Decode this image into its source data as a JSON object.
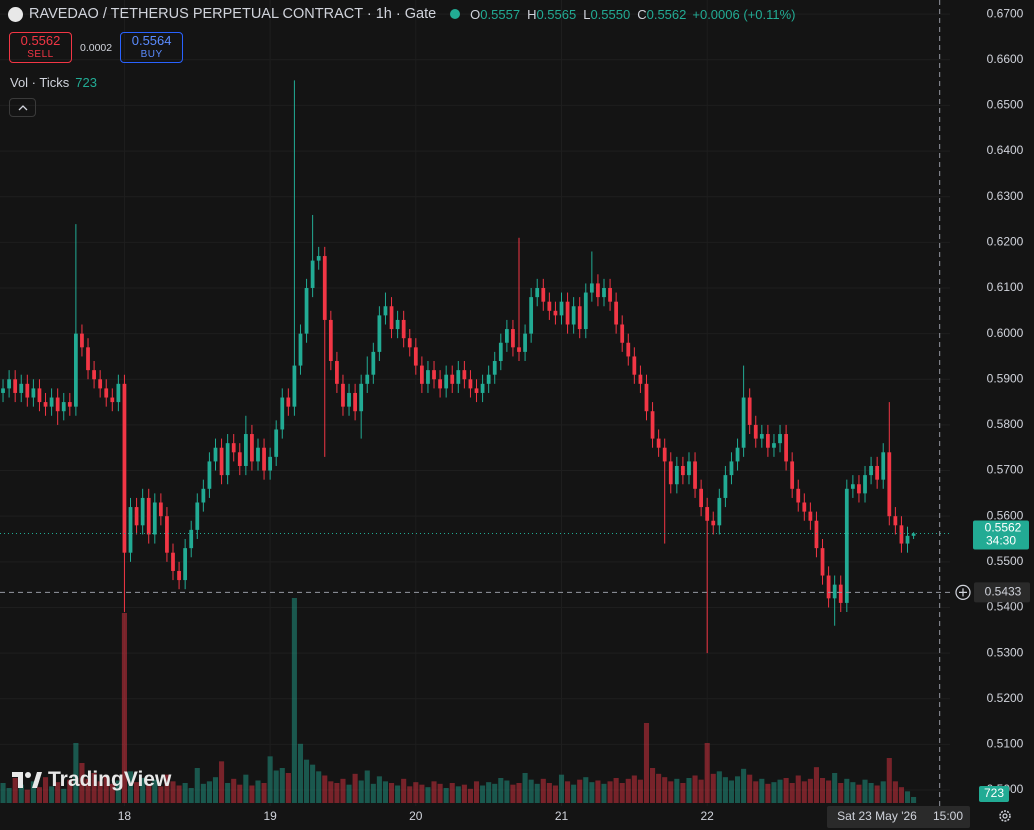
{
  "header": {
    "symbol": "RAVEDAO / TETHERUS PERPETUAL CONTRACT · 1h · Gate",
    "ohlc": [
      {
        "key": "O",
        "value": "0.5557"
      },
      {
        "key": "H",
        "value": "0.5565"
      },
      {
        "key": "L",
        "value": "0.5550"
      },
      {
        "key": "C",
        "value": "0.5562"
      }
    ],
    "change": "+0.0006 (+0.11%)"
  },
  "trade": {
    "sell_price": "0.5562",
    "sell_label": "SELL",
    "spread": "0.0002",
    "buy_price": "0.5564",
    "buy_label": "BUY"
  },
  "volume_legend": {
    "label": "Vol · Ticks"
  },
  "watermark": "TradingView",
  "chart_data": {
    "type": "candlestick",
    "open": [
      0.587,
      0.588,
      0.59,
      0.587,
      0.589,
      0.586,
      0.588,
      0.585,
      0.584,
      0.586,
      0.583,
      0.585,
      0.584,
      0.6,
      0.597,
      0.592,
      0.59,
      0.588,
      0.586,
      0.585,
      0.589,
      0.552,
      0.562,
      0.558,
      0.564,
      0.556,
      0.563,
      0.56,
      0.552,
      0.548,
      0.546,
      0.553,
      0.557,
      0.563,
      0.566,
      0.572,
      0.575,
      0.569,
      0.576,
      0.574,
      0.571,
      0.578,
      0.572,
      0.575,
      0.57,
      0.573,
      0.579,
      0.586,
      0.584,
      0.593,
      0.6,
      0.61,
      0.616,
      0.617,
      0.603,
      0.594,
      0.589,
      0.584,
      0.587,
      0.583,
      0.589,
      0.591,
      0.596,
      0.604,
      0.606,
      0.601,
      0.603,
      0.599,
      0.597,
      0.593,
      0.589,
      0.592,
      0.59,
      0.588,
      0.591,
      0.589,
      0.592,
      0.59,
      0.588,
      0.587,
      0.589,
      0.591,
      0.594,
      0.598,
      0.601,
      0.597,
      0.596,
      0.6,
      0.608,
      0.61,
      0.607,
      0.605,
      0.604,
      0.607,
      0.602,
      0.606,
      0.601,
      0.609,
      0.611,
      0.608,
      0.61,
      0.607,
      0.602,
      0.598,
      0.595,
      0.591,
      0.589,
      0.583,
      0.577,
      0.575,
      0.572,
      0.567,
      0.571,
      0.569,
      0.572,
      0.566,
      0.562,
      0.559,
      0.558,
      0.564,
      0.569,
      0.572,
      0.575,
      0.586,
      0.58,
      0.577,
      0.578,
      0.575,
      0.576,
      0.578,
      0.572,
      0.566,
      0.563,
      0.561,
      0.559,
      0.553,
      0.547,
      0.542,
      0.545,
      0.541,
      0.566,
      0.567,
      0.565,
      0.569,
      0.571,
      0.568,
      0.574,
      0.56,
      0.558,
      0.554,
      0.5557
    ],
    "high": [
      0.59,
      0.592,
      0.592,
      0.591,
      0.591,
      0.59,
      0.59,
      0.587,
      0.588,
      0.588,
      0.587,
      0.587,
      0.624,
      0.602,
      0.599,
      0.594,
      0.592,
      0.59,
      0.588,
      0.591,
      0.591,
      0.564,
      0.564,
      0.566,
      0.566,
      0.565,
      0.565,
      0.562,
      0.554,
      0.55,
      0.555,
      0.559,
      0.565,
      0.568,
      0.574,
      0.577,
      0.577,
      0.578,
      0.578,
      0.576,
      0.582,
      0.58,
      0.577,
      0.577,
      0.575,
      0.581,
      0.588,
      0.588,
      0.6555,
      0.602,
      0.612,
      0.626,
      0.619,
      0.619,
      0.605,
      0.596,
      0.591,
      0.589,
      0.589,
      0.591,
      0.595,
      0.598,
      0.606,
      0.609,
      0.608,
      0.605,
      0.605,
      0.601,
      0.599,
      0.595,
      0.594,
      0.594,
      0.592,
      0.593,
      0.593,
      0.594,
      0.594,
      0.592,
      0.59,
      0.591,
      0.593,
      0.596,
      0.6,
      0.603,
      0.603,
      0.621,
      0.602,
      0.61,
      0.612,
      0.612,
      0.609,
      0.607,
      0.609,
      0.609,
      0.608,
      0.608,
      0.611,
      0.618,
      0.613,
      0.612,
      0.612,
      0.609,
      0.604,
      0.6,
      0.597,
      0.593,
      0.591,
      0.585,
      0.579,
      0.577,
      0.574,
      0.573,
      0.573,
      0.574,
      0.574,
      0.568,
      0.564,
      0.561,
      0.566,
      0.571,
      0.574,
      0.577,
      0.593,
      0.588,
      0.582,
      0.58,
      0.58,
      0.578,
      0.58,
      0.58,
      0.574,
      0.568,
      0.565,
      0.563,
      0.561,
      0.555,
      0.549,
      0.547,
      0.547,
      0.568,
      0.569,
      0.569,
      0.571,
      0.573,
      0.573,
      0.576,
      0.585,
      0.562,
      0.56,
      0.5577,
      0.5565
    ],
    "low": [
      0.585,
      0.586,
      0.585,
      0.585,
      0.584,
      0.584,
      0.583,
      0.582,
      0.582,
      0.58,
      0.581,
      0.582,
      0.582,
      0.595,
      0.59,
      0.588,
      0.586,
      0.584,
      0.583,
      0.583,
      0.539,
      0.55,
      0.556,
      0.556,
      0.554,
      0.554,
      0.558,
      0.55,
      0.546,
      0.544,
      0.544,
      0.551,
      0.555,
      0.561,
      0.564,
      0.57,
      0.567,
      0.567,
      0.572,
      0.569,
      0.569,
      0.57,
      0.57,
      0.568,
      0.568,
      0.571,
      0.577,
      0.582,
      0.582,
      0.591,
      0.598,
      0.608,
      0.614,
      0.573,
      0.592,
      0.587,
      0.582,
      0.582,
      0.581,
      0.577,
      0.587,
      0.589,
      0.594,
      0.602,
      0.599,
      0.599,
      0.597,
      0.595,
      0.591,
      0.587,
      0.587,
      0.588,
      0.586,
      0.586,
      0.587,
      0.587,
      0.588,
      0.586,
      0.585,
      0.585,
      0.587,
      0.589,
      0.592,
      0.596,
      0.595,
      0.594,
      0.594,
      0.598,
      0.606,
      0.605,
      0.603,
      0.602,
      0.602,
      0.6,
      0.6,
      0.599,
      0.599,
      0.607,
      0.606,
      0.606,
      0.605,
      0.6,
      0.596,
      0.593,
      0.589,
      0.587,
      0.581,
      0.575,
      0.573,
      0.554,
      0.565,
      0.565,
      0.567,
      0.567,
      0.564,
      0.56,
      0.53,
      0.556,
      0.556,
      0.562,
      0.567,
      0.57,
      0.573,
      0.578,
      0.575,
      0.575,
      0.573,
      0.573,
      0.574,
      0.57,
      0.564,
      0.561,
      0.559,
      0.557,
      0.551,
      0.545,
      0.54,
      0.536,
      0.539,
      0.539,
      0.564,
      0.563,
      0.563,
      0.567,
      0.566,
      0.566,
      0.558,
      0.556,
      0.552,
      0.552,
      0.555
    ],
    "close": [
      0.588,
      0.59,
      0.587,
      0.589,
      0.586,
      0.588,
      0.585,
      0.584,
      0.586,
      0.583,
      0.585,
      0.584,
      0.6,
      0.597,
      0.592,
      0.59,
      0.588,
      0.586,
      0.585,
      0.589,
      0.552,
      0.562,
      0.558,
      0.564,
      0.556,
      0.563,
      0.56,
      0.552,
      0.548,
      0.546,
      0.553,
      0.557,
      0.563,
      0.566,
      0.572,
      0.575,
      0.569,
      0.576,
      0.574,
      0.571,
      0.578,
      0.572,
      0.575,
      0.57,
      0.573,
      0.579,
      0.586,
      0.584,
      0.593,
      0.6,
      0.61,
      0.616,
      0.617,
      0.603,
      0.594,
      0.589,
      0.584,
      0.587,
      0.583,
      0.589,
      0.591,
      0.596,
      0.604,
      0.606,
      0.601,
      0.603,
      0.599,
      0.597,
      0.593,
      0.589,
      0.592,
      0.59,
      0.588,
      0.591,
      0.589,
      0.592,
      0.59,
      0.588,
      0.587,
      0.589,
      0.591,
      0.594,
      0.598,
      0.601,
      0.597,
      0.596,
      0.6,
      0.608,
      0.61,
      0.607,
      0.605,
      0.604,
      0.607,
      0.602,
      0.606,
      0.601,
      0.609,
      0.611,
      0.608,
      0.61,
      0.607,
      0.602,
      0.598,
      0.595,
      0.591,
      0.589,
      0.583,
      0.577,
      0.575,
      0.572,
      0.567,
      0.571,
      0.569,
      0.572,
      0.566,
      0.562,
      0.559,
      0.558,
      0.564,
      0.569,
      0.572,
      0.575,
      0.586,
      0.58,
      0.577,
      0.578,
      0.575,
      0.576,
      0.578,
      0.572,
      0.566,
      0.563,
      0.561,
      0.559,
      0.553,
      0.547,
      0.542,
      0.545,
      0.541,
      0.566,
      0.567,
      0.565,
      0.569,
      0.571,
      0.568,
      0.574,
      0.56,
      0.558,
      0.554,
      0.5557,
      0.5562
    ],
    "volume": [
      2400,
      1800,
      3000,
      2200,
      1600,
      2600,
      1900,
      3100,
      2000,
      2500,
      1700,
      2800,
      7200,
      4800,
      2900,
      3600,
      2600,
      3300,
      2300,
      2700,
      22800,
      3800,
      2500,
      3000,
      2200,
      2800,
      2000,
      3400,
      2600,
      2100,
      2400,
      1800,
      4200,
      2300,
      2600,
      3100,
      5000,
      2400,
      2900,
      2200,
      3400,
      2100,
      2700,
      2400,
      5600,
      3900,
      4200,
      3600,
      24600,
      7100,
      5200,
      4600,
      3800,
      3300,
      2600,
      2400,
      2900,
      2200,
      3500,
      2700,
      3900,
      2300,
      3200,
      2600,
      2400,
      2100,
      2900,
      2000,
      2500,
      2200,
      1900,
      2600,
      2300,
      1800,
      2400,
      2000,
      2200,
      1700,
      2600,
      2100,
      2500,
      2300,
      3000,
      2700,
      2200,
      2400,
      3600,
      2800,
      2300,
      2900,
      2400,
      2100,
      3400,
      2600,
      2200,
      2800,
      3100,
      2500,
      2700,
      2300,
      2600,
      3000,
      2400,
      2900,
      3300,
      2800,
      9600,
      4200,
      3500,
      3100,
      2600,
      2900,
      2400,
      3000,
      3300,
      2800,
      7200,
      3500,
      3800,
      3100,
      2700,
      3200,
      4100,
      3400,
      2600,
      2900,
      2300,
      2500,
      2800,
      3000,
      2400,
      3300,
      2600,
      2900,
      4300,
      3000,
      2700,
      3600,
      2400,
      2900,
      2500,
      2200,
      2800,
      2400,
      2100,
      2600,
      5400,
      2600,
      1900,
      1400,
      723
    ],
    "up_color": "#22ab94",
    "down_color": "#f23645",
    "xlim": [
      -0.5,
      156
    ],
    "xticks": [
      {
        "value": 20,
        "label": "18"
      },
      {
        "value": 44,
        "label": "19"
      },
      {
        "value": 68,
        "label": "20"
      },
      {
        "value": 92,
        "label": "21"
      },
      {
        "value": 116,
        "label": "22"
      }
    ],
    "ylim": [
      0.4965,
      0.6731
    ],
    "yticks": [
      {
        "value": 0.67,
        "label": "0.6700"
      },
      {
        "value": 0.66,
        "label": "0.6600"
      },
      {
        "value": 0.65,
        "label": "0.6500"
      },
      {
        "value": 0.64,
        "label": "0.6400"
      },
      {
        "value": 0.63,
        "label": "0.6300"
      },
      {
        "value": 0.62,
        "label": "0.6200"
      },
      {
        "value": 0.61,
        "label": "0.6100"
      },
      {
        "value": 0.6,
        "label": "0.6000"
      },
      {
        "value": 0.59,
        "label": "0.5900"
      },
      {
        "value": 0.58,
        "label": "0.5800"
      },
      {
        "value": 0.57,
        "label": "0.5700"
      },
      {
        "value": 0.56,
        "label": "0.5600"
      },
      {
        "value": 0.55,
        "label": "0.5500"
      },
      {
        "value": 0.54,
        "label": "0.5400"
      },
      {
        "value": 0.53,
        "label": "0.5300"
      },
      {
        "value": 0.52,
        "label": "0.5200"
      },
      {
        "value": 0.51,
        "label": "0.5100"
      },
      {
        "value": 0.5,
        "label": "0.5000"
      }
    ],
    "volume_ylim": [
      0,
      30000
    ],
    "grid": true,
    "countdown": "34:30",
    "crosshair": {
      "x": 154.3,
      "y": 0.5433,
      "date": "Sat 23 May '26",
      "time": "15:00"
    }
  }
}
